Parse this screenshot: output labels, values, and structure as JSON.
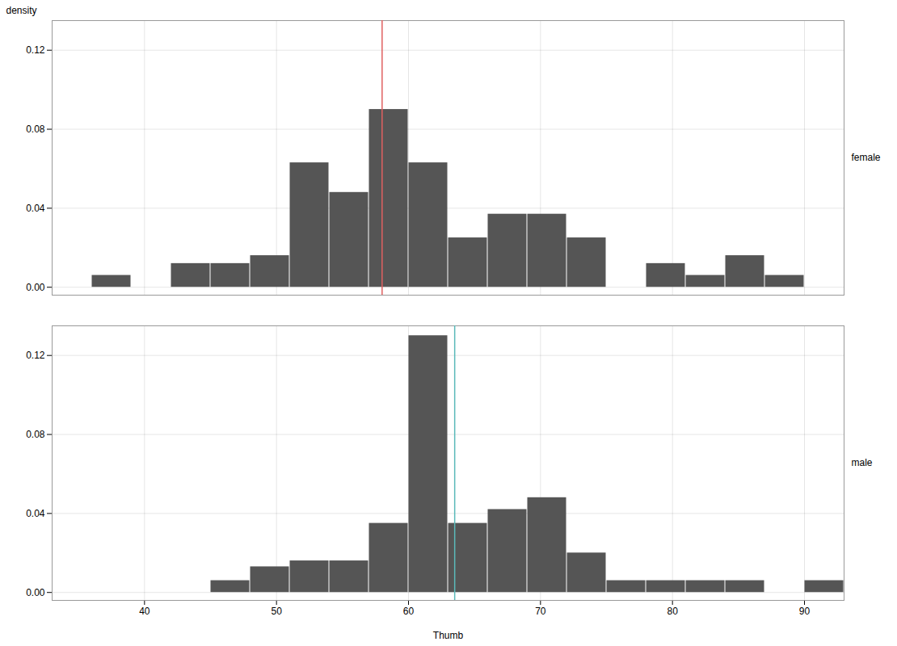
{
  "chart_data": {
    "type": "histogram",
    "xlabel": "Thumb",
    "ylabel": "density",
    "xlim": [
      33,
      93
    ],
    "ylim": [
      -0.004,
      0.135
    ],
    "xticks": [
      40,
      50,
      60,
      70,
      80,
      90
    ],
    "yticks": [
      {
        "value": 0.0,
        "label": "0.00"
      },
      {
        "value": 0.04,
        "label": "0.04"
      },
      {
        "value": 0.08,
        "label": "0.08"
      },
      {
        "value": 0.12,
        "label": "0.12"
      }
    ],
    "grid": true,
    "color": "#555555",
    "series": [
      {
        "name": "female",
        "color": "#E06060",
        "mean": 58.0,
        "bins": [
          36,
          39,
          42,
          45,
          48,
          51,
          54,
          57,
          60,
          63,
          66,
          69,
          72,
          75,
          78,
          81,
          84,
          87,
          90
        ],
        "values": [
          0.006,
          0.0,
          0.012,
          0.012,
          0.016,
          0.063,
          0.048,
          0.09,
          0.063,
          0.025,
          0.037,
          0.037,
          0.025,
          0.0,
          0.012,
          0.006,
          0.016,
          0.006
        ]
      },
      {
        "name": "male",
        "color": "#5BBABA",
        "mean": 63.5,
        "bins": [
          45,
          48,
          51,
          54,
          57,
          60,
          63,
          66,
          69,
          72,
          75,
          78,
          81,
          84,
          87,
          90,
          93
        ],
        "values": [
          0.006,
          0.013,
          0.016,
          0.016,
          0.035,
          0.13,
          0.035,
          0.042,
          0.048,
          0.02,
          0.006,
          0.006,
          0.006,
          0.006,
          0.0,
          0.006
        ]
      }
    ]
  }
}
